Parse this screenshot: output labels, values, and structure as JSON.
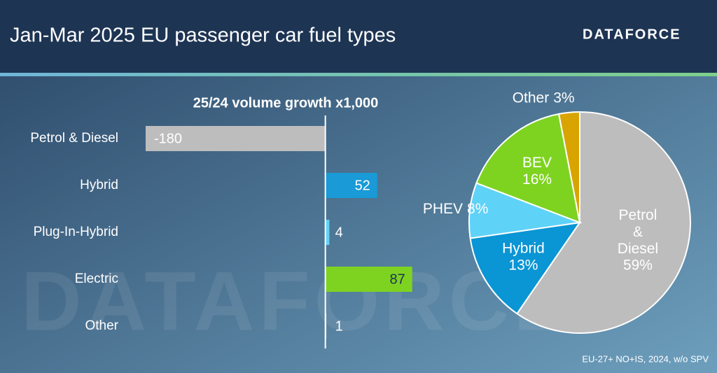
{
  "header": {
    "title": "Jan-Mar 2025 EU passenger car fuel types",
    "logo": "DATAFORCE",
    "watermark": "DATAFORCE"
  },
  "chart_data": [
    {
      "type": "hbar",
      "title": "25/24 volume growth x1,000",
      "categories": [
        "Petrol & Diesel",
        "Hybrid",
        "Plug-In-Hybrid",
        "Electric",
        "Other"
      ],
      "values": [
        -180,
        52,
        4,
        87,
        1
      ],
      "colors": [
        "#bdbdbd",
        "#1a9ad6",
        "#63d3f7",
        "#7ed321",
        "#bdbdbd"
      ],
      "xlim": [
        -180,
        90
      ]
    },
    {
      "type": "pie",
      "labels": [
        "Petrol & Diesel",
        "Hybrid",
        "PHEV",
        "BEV",
        "Other"
      ],
      "values": [
        59,
        13,
        8,
        16,
        3
      ],
      "value_labels": [
        "59%",
        "13%",
        "8%",
        "16%",
        "3%"
      ],
      "colors": [
        "#bdbdbd",
        "#0a95d4",
        "#5fd2f8",
        "#7ed321",
        "#d9a400"
      ]
    }
  ],
  "footnote": "EU-27+ NO+IS, 2024, w/o SPV"
}
